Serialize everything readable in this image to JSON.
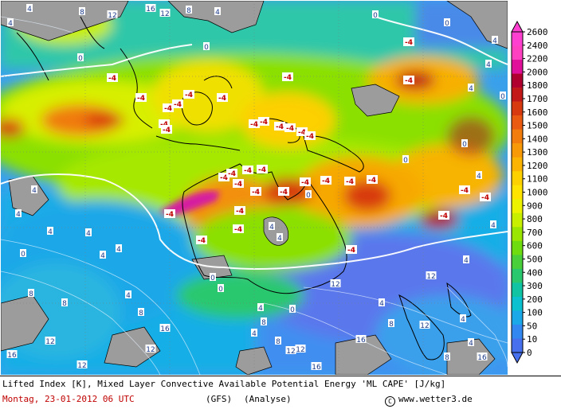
{
  "map": {
    "labels_neg": [
      {
        "t": "-4"
      },
      {
        "t": "-4"
      },
      {
        "t": "-4"
      },
      {
        "t": "-4"
      },
      {
        "t": "-4"
      },
      {
        "t": "-4"
      },
      {
        "t": "-4"
      },
      {
        "t": "-4"
      },
      {
        "t": "-4"
      },
      {
        "t": "-4"
      },
      {
        "t": "-4"
      },
      {
        "t": "-4"
      },
      {
        "t": "-4"
      },
      {
        "t": "-4"
      },
      {
        "t": "-4"
      },
      {
        "t": "-4"
      },
      {
        "t": "-4"
      },
      {
        "t": "-4"
      },
      {
        "t": "-4"
      },
      {
        "t": "-4"
      },
      {
        "t": "-4"
      },
      {
        "t": "-4"
      },
      {
        "t": "-4"
      },
      {
        "t": "-4"
      },
      {
        "t": "-4"
      },
      {
        "t": "-4"
      },
      {
        "t": "-4"
      },
      {
        "t": "-4"
      },
      {
        "t": "-4"
      },
      {
        "t": "-4"
      },
      {
        "t": "-4"
      },
      {
        "t": "-4"
      },
      {
        "t": "-4"
      },
      {
        "t": "-4"
      },
      {
        "t": "-4"
      },
      {
        "t": "-4"
      }
    ],
    "labels_pos": [
      "4",
      "4",
      "8",
      "12",
      "16",
      "12",
      "8",
      "4",
      "0",
      "0",
      "0",
      "0",
      "4",
      "4",
      "4",
      "0",
      "0",
      "4",
      "4",
      "0",
      "4",
      "4",
      "4",
      "8",
      "8",
      "12",
      "16",
      "12",
      "4",
      "4",
      "16",
      "12",
      "8",
      "4",
      "4",
      "0",
      "4",
      "8",
      "12",
      "16",
      "4",
      "8",
      "12",
      "4",
      "4",
      "4",
      "0",
      "0",
      "4",
      "4",
      "8",
      "12",
      "16",
      "0",
      "0",
      "4",
      "8",
      "12",
      "16",
      "12"
    ]
  },
  "legend": {
    "ticks": [
      "2600",
      "2400",
      "2200",
      "2000",
      "1800",
      "1700",
      "1600",
      "1500",
      "1400",
      "1300",
      "1200",
      "1100",
      "1000",
      "900",
      "800",
      "700",
      "600",
      "500",
      "400",
      "300",
      "200",
      "100",
      "50",
      "10",
      "0"
    ],
    "colors": [
      "#ff3fd0",
      "#ff40c0",
      "#e0109a",
      "#b00030",
      "#c21818",
      "#d83a10",
      "#ea5a10",
      "#f27c0c",
      "#f89a08",
      "#fbb404",
      "#fdd000",
      "#ffe400",
      "#ecf200",
      "#c8ef00",
      "#9ae600",
      "#6fdc10",
      "#48cf3a",
      "#2ac86e",
      "#10c3a2",
      "#0bc0cf",
      "#1aa8e8",
      "#3288f0",
      "#4670ee"
    ]
  },
  "footer": {
    "line1": "Lifted Index [K], Mixed Layer Convective Available Potential Energy 'ML CAPE' [J/kg]",
    "date": "Montag, 23-01-2012  06 UTC",
    "model": "(GFS)",
    "analysis": "(Analyse)",
    "copyright_symbol": "C",
    "copyright_text": "www.wetter3.de"
  }
}
